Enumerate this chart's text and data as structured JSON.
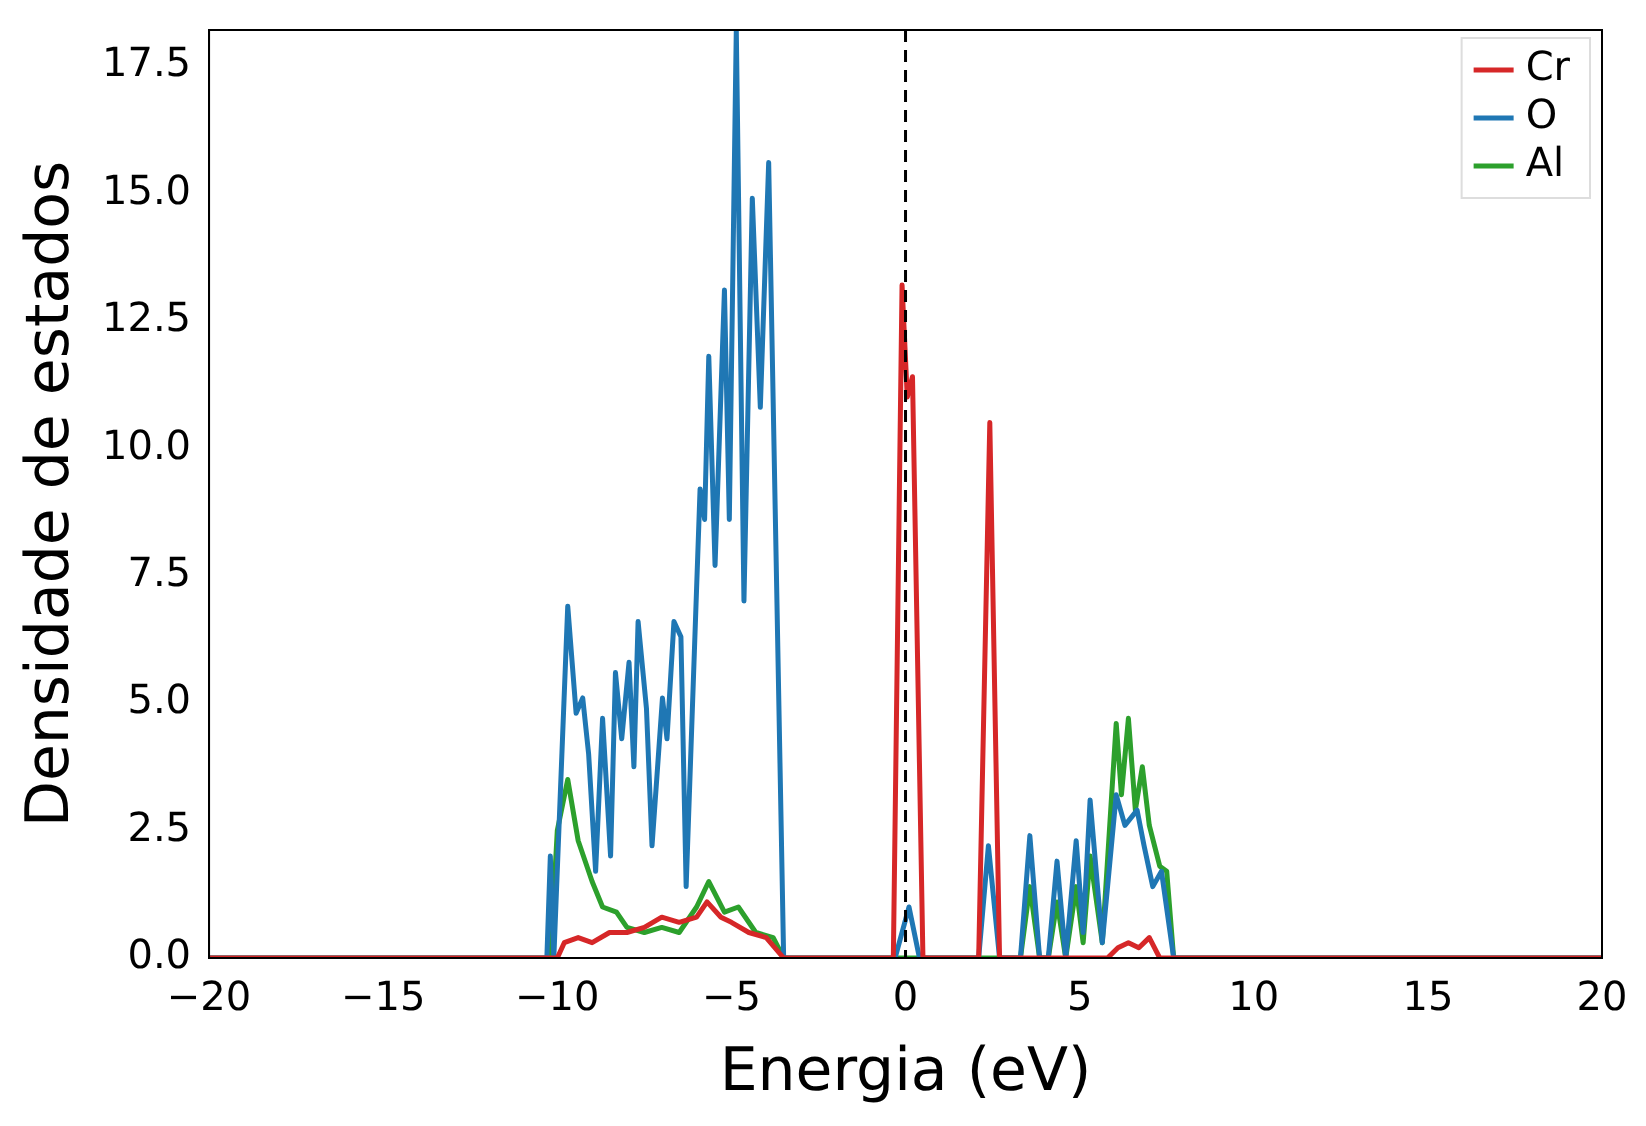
{
  "chart_data": {
    "type": "line",
    "xlabel": "Energia (eV)",
    "ylabel": "Densidade de estados",
    "xlim": [
      -20,
      20
    ],
    "ylim": [
      0,
      18.2
    ],
    "xticks": [
      {
        "value": -20,
        "label": "−20"
      },
      {
        "value": -15,
        "label": "−15"
      },
      {
        "value": -10,
        "label": "−10"
      },
      {
        "value": -5,
        "label": "−5"
      },
      0,
      5,
      10,
      15,
      20
    ],
    "yticks": [
      {
        "value": 0,
        "label": "0.0"
      },
      2.5,
      {
        "value": 5,
        "label": "5.0"
      },
      7.5,
      {
        "value": 10,
        "label": "10.0"
      },
      12.5,
      {
        "value": 15,
        "label": "15.0"
      },
      17.5
    ],
    "legend": "top right",
    "grid": false,
    "marker": "none",
    "line_style": "solid",
    "ref_lines": [
      {
        "axis": "x",
        "value": 0,
        "label": null,
        "color": "#000000",
        "line_style": "dashed"
      }
    ],
    "series": [
      {
        "name": "Cr",
        "color": "#d62728",
        "x": [
          -20,
          -10.2,
          -10,
          -9.8,
          -9.4,
          -9,
          -8.5,
          -8,
          -7.5,
          -7,
          -6.5,
          -6,
          -5.7,
          -5.3,
          -5,
          -4.5,
          -4,
          -3.5,
          -0.35,
          -0.1,
          0.05,
          0.2,
          0.5,
          2.1,
          2.42,
          2.7,
          5.8,
          6.1,
          6.4,
          6.7,
          7,
          7.3,
          20
        ],
        "values": [
          0,
          0,
          0,
          0.3,
          0.4,
          0.3,
          0.5,
          0.5,
          0.6,
          0.8,
          0.7,
          0.8,
          1.1,
          0.8,
          0.7,
          0.5,
          0.4,
          0,
          0,
          13.2,
          11,
          11.4,
          0,
          0,
          10.5,
          0,
          0,
          0.2,
          0.3,
          0.2,
          0.4,
          0,
          0
        ]
      },
      {
        "name": "O",
        "color": "#1f77b4",
        "x": [
          -20,
          -10.3,
          -10.2,
          -10.1,
          -9.7,
          -9.46,
          -9.27,
          -9.1,
          -8.9,
          -8.7,
          -8.47,
          -8.33,
          -8.15,
          -7.94,
          -7.8,
          -7.68,
          -7.44,
          -7.28,
          -6.98,
          -6.85,
          -6.65,
          -6.45,
          -6.3,
          -5.9,
          -5.77,
          -5.65,
          -5.47,
          -5.2,
          -5.06,
          -4.86,
          -4.64,
          -4.4,
          -4.17,
          -3.93,
          -3.5,
          -0.3,
          0.1,
          0.4,
          2.1,
          2.38,
          2.7,
          3.3,
          3.57,
          3.85,
          4.1,
          4.35,
          4.6,
          4.9,
          5.1,
          5.3,
          5.65,
          6.05,
          6.3,
          6.65,
          6.85,
          7.1,
          7.35,
          7.7,
          20
        ],
        "values": [
          0,
          0,
          2,
          0,
          6.9,
          4.8,
          5.1,
          4,
          1.7,
          4.7,
          2,
          5.6,
          4.3,
          5.8,
          3.75,
          6.6,
          4.9,
          2.2,
          5.1,
          4.3,
          6.6,
          6.3,
          1.4,
          9.2,
          8.6,
          11.8,
          7.7,
          13.1,
          8.6,
          18.2,
          7,
          14.9,
          10.8,
          15.6,
          0,
          0,
          1,
          0,
          0,
          2.2,
          0,
          0,
          2.4,
          0,
          0,
          1.9,
          0,
          2.3,
          0.5,
          3.1,
          0.3,
          3.2,
          2.6,
          2.9,
          2.2,
          1.4,
          1.7,
          0,
          0
        ]
      },
      {
        "name": "Al",
        "color": "#2ca02c",
        "x": [
          -20,
          -10.2,
          -10,
          -9.7,
          -9.4,
          -9,
          -8.7,
          -8.3,
          -8,
          -7.5,
          -7,
          -6.5,
          -6,
          -5.65,
          -5.2,
          -4.8,
          -4.3,
          -3.8,
          -3.5,
          3.3,
          3.57,
          3.85,
          4.1,
          4.35,
          4.6,
          4.9,
          5.1,
          5.3,
          5.65,
          6.05,
          6.2,
          6.4,
          6.6,
          6.8,
          7,
          7.3,
          7.5,
          7.7,
          20
        ],
        "values": [
          0,
          0,
          2.5,
          3.5,
          2.3,
          1.5,
          1,
          0.9,
          0.6,
          0.5,
          0.6,
          0.5,
          1,
          1.5,
          0.9,
          1,
          0.5,
          0.4,
          0,
          0,
          1.4,
          0,
          0,
          1.1,
          0,
          1.4,
          0.3,
          2,
          0.3,
          4.6,
          3.2,
          4.7,
          2.9,
          3.75,
          2.6,
          1.8,
          1.7,
          0,
          0
        ]
      }
    ]
  }
}
